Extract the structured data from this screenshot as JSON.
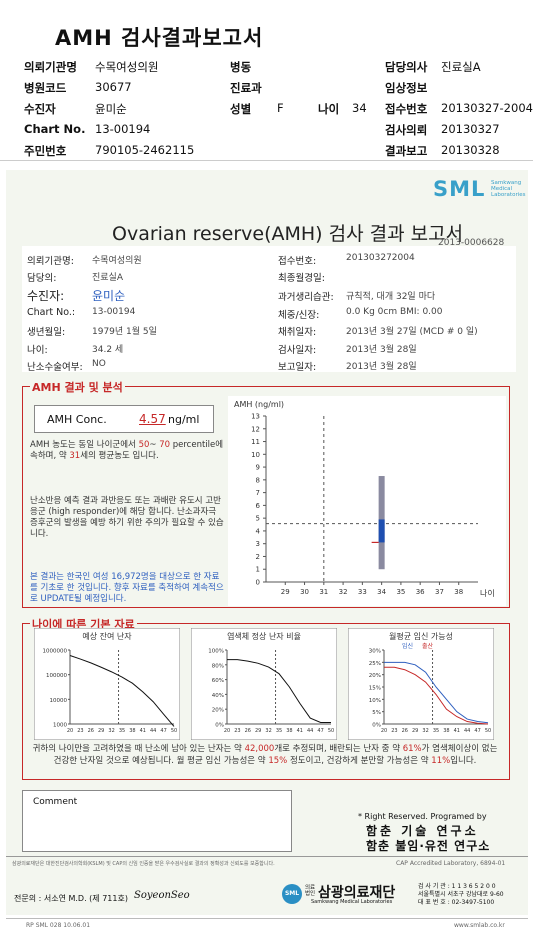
{
  "header": {
    "title": "AMH 검사결과보고서",
    "rows": [
      {
        "l1": "의뢰기관명",
        "v1": "수목여성의원",
        "l2": "병동",
        "v2": "",
        "l3": "담당의사",
        "v3": "진료실A"
      },
      {
        "l1": "병원코드",
        "v1": "30677",
        "l2": "진료과",
        "v2": "",
        "l3": "임상정보",
        "v3": ""
      },
      {
        "l1": "수진자",
        "v1": "윤미순",
        "l2": "성별",
        "v2": "F",
        "l2b": "나이",
        "v2b": "34",
        "l3": "접수번호",
        "v3": "20130327-2004"
      },
      {
        "l1": "Chart No.",
        "v1": "13-00194",
        "l2": "",
        "v2": "",
        "l3": "검사의뢰",
        "v3": "20130327"
      },
      {
        "l1": "주민번호",
        "v1": "790105-2462115",
        "l2": "",
        "v2": "",
        "l3": "결과보고",
        "v3": "20130328"
      }
    ]
  },
  "report": {
    "logo": "SML",
    "logo_sub1": "Samkwang",
    "logo_sub2": "Medical",
    "logo_sub3": "Laboratories",
    "title": "Ovarian reserve(AMH) 검사 결과 보고서",
    "report_no": "2013-0006628",
    "left_info": [
      {
        "label": "의뢰기관명:",
        "value": "수목여성의원"
      },
      {
        "label": "담당의:",
        "value": "진료실A"
      },
      {
        "label": "수진자:",
        "value": "윤미순"
      },
      {
        "label": "Chart No.:",
        "value": "13-00194"
      },
      {
        "label": "생년월일:",
        "value": "1979년 1월 5일"
      },
      {
        "label": "나이:",
        "value": "34.2 세"
      },
      {
        "label": "난소수술여부:",
        "value": "NO"
      }
    ],
    "right_info": [
      {
        "label": "접수번호:",
        "value": "201303272004"
      },
      {
        "label": "최종월경일:",
        "value": ""
      },
      {
        "label": "과거생리습관:",
        "value": "규칙적, 대개   32일 마다"
      },
      {
        "label": "체중/신장:",
        "value": "0.0 Kg       0cm     BMI:      0.00"
      },
      {
        "label": "채취일자:",
        "value": "2013년 3월 27일    (MCD # 0 일)"
      },
      {
        "label": "검사일자:",
        "value": "2013년 3월 28일"
      },
      {
        "label": "보고일자:",
        "value": "2013년 3월 28일"
      }
    ]
  },
  "amh_section": {
    "title": "AMH 결과 및 분석",
    "conc_label": "AMH Conc.",
    "conc_value": "4.57",
    "conc_unit": "ng/ml",
    "text1_a": "AMH 농도는 동일 나이군에서",
    "text1_p1": "50",
    "text1_sep": "~",
    "text1_p2": "70",
    "text1_b": "percentile에 속하며, 약",
    "text1_age": "31",
    "text1_c": "세의 평균농도 입니다.",
    "text2": "난소반응 예측 결과 과반응도 또는 과배란 유도시 고반응군 (high responder)에 해당 합니다. 난소과자극 증후군의 발생을 예방 하기 위한 주의가 필요할 수 있습니다.",
    "text3": "본 결과는 한국인 여성 16,972명을 대상으로 한 자료를 기초로 한 것입니다. 향후 자료를 축적하여 계속적으로 UPDATE될 예정입니다."
  },
  "chart_data": [
    {
      "type": "box",
      "ylabel": "AMH (ng/ml)",
      "xlabel": "나이",
      "xlim": [
        28,
        39
      ],
      "ylim": [
        0,
        13
      ],
      "x_ticks": [
        29,
        30,
        31,
        32,
        33,
        34,
        35,
        36,
        37,
        38
      ],
      "y_ticks": [
        0,
        1,
        2,
        3,
        4,
        5,
        6,
        7,
        8,
        9,
        10,
        11,
        12,
        13
      ],
      "patient_age": 34,
      "patient_value": 4.57,
      "ref_age_line": 31,
      "box": {
        "x": 34,
        "whisker_low": 1.0,
        "q1": 3.1,
        "q3": 4.9,
        "whisker_high": 8.3
      }
    },
    {
      "type": "line",
      "title": "예상 잔여 난자",
      "x_ticks": [
        "20",
        "23",
        "26",
        "29",
        "32",
        "35",
        "38",
        "41",
        "44",
        "47",
        "50"
      ],
      "y_ticks": [
        "1000000",
        "100000",
        "10000",
        "1000"
      ],
      "yscale": "log",
      "x": [
        20,
        23,
        26,
        29,
        32,
        35,
        38,
        41,
        44,
        47,
        50
      ],
      "y": [
        600000,
        430000,
        300000,
        200000,
        130000,
        80000,
        45000,
        20000,
        8000,
        2500,
        800
      ],
      "ref_line_x": 34
    },
    {
      "type": "line",
      "title": "염색체 정상 난자 비율",
      "x_ticks": [
        "20",
        "23",
        "26",
        "29",
        "32",
        "35",
        "38",
        "41",
        "44",
        "47",
        "50"
      ],
      "y_ticks": [
        "100%",
        "80%",
        "60%",
        "40%",
        "20%",
        "0%"
      ],
      "x": [
        20,
        23,
        26,
        29,
        32,
        35,
        38,
        41,
        44,
        47,
        50
      ],
      "y": [
        87,
        87,
        85,
        82,
        77,
        68,
        50,
        28,
        8,
        2,
        2
      ],
      "ref_line_x": 34
    },
    {
      "type": "line",
      "title": "월평균 임신 가능성",
      "legend": [
        "임신",
        "출산"
      ],
      "x_ticks": [
        "20",
        "23",
        "26",
        "29",
        "32",
        "35",
        "38",
        "41",
        "44",
        "47",
        "50"
      ],
      "y_ticks": [
        "30%",
        "25%",
        "20%",
        "15%",
        "10%",
        "5%",
        "0%"
      ],
      "x": [
        20,
        23,
        26,
        29,
        32,
        35,
        38,
        41,
        44,
        47,
        50
      ],
      "series": [
        {
          "name": "임신",
          "values": [
            25,
            25,
            25,
            24,
            21,
            15,
            10,
            5,
            2,
            1,
            0.5
          ]
        },
        {
          "name": "출산",
          "values": [
            23,
            23,
            22,
            20,
            17,
            12,
            6,
            3,
            1,
            0.3,
            0
          ]
        }
      ],
      "ref_line_x": 34
    }
  ],
  "basic_section": {
    "title": "나이에 따른 기본 자료",
    "sum_a": "귀하의 나이만을 고려하였을 때 난소에 남아 있는 난자는 약",
    "sum_eggs": "42,000",
    "sum_b": "개로 추정되며, 배란되는 난자 중 약",
    "sum_pct": "61%",
    "sum_c": "가 염색체이상이 없는 건강한 난자일 것으로 예상됩니다. 월 평균 임신 가능성은 약",
    "sum_preg": "15%",
    "sum_d": "정도이고, 건강하게 분만할 가능성은 약",
    "sum_birth": "11%",
    "sum_e": "입니다."
  },
  "comment": {
    "label": "Comment"
  },
  "rights": {
    "line1": "* Right Reserved. Programed by",
    "line2": "함춘 기술 연구소",
    "line3": "함춘 불임·유전 연구소"
  },
  "footer": {
    "note": "삼광의료재단은 대한진단검사의학회(KSLM) 및 CAP의 신임 인증을 받은 우수검사실로 결과의 정확성과 신뢰도를 보증합니다.",
    "cap": "CAP  Accredited  Laboratory,  6894-01",
    "doctor": "전문의 : 서소연 M.D. (제 711호)",
    "signature": "SoyeonSeo",
    "org_small1": "의료",
    "org_small2": "법인",
    "org_name": "삼광의료재단",
    "org_en": "Samkwang Medical Laboratories",
    "biz_no": "검 사 기 관 : 1 1 3 6 5 2 0 0",
    "address": "서울특별시 서초구 강남대로 9-60",
    "fax": "대 표 번 호 : 02-3497-5100",
    "code": "RP  SML  028  10.06.01",
    "url": "www.smlab.co.kr"
  }
}
